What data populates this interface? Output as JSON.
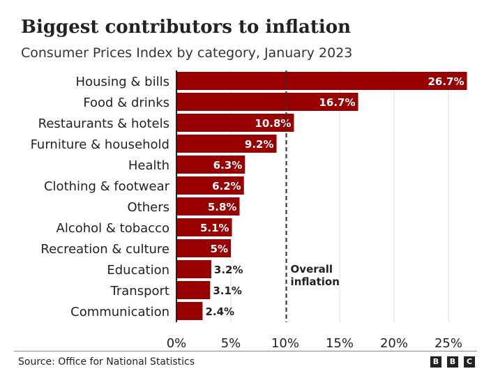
{
  "title": "Biggest contributors to inflation",
  "subtitle": "Consumer Prices Index by category, January 2023",
  "source": "Source: Office for National Statistics",
  "logo_letters": [
    "B",
    "B",
    "C"
  ],
  "colors": {
    "bar": "#990000",
    "grid": "#dddddd",
    "axis": "#222222",
    "text": "#222222"
  },
  "chart_data": {
    "type": "bar",
    "orientation": "horizontal",
    "categories": [
      "Housing & bills",
      "Food & drinks",
      "Restaurants & hotels",
      "Furniture & household",
      "Health",
      "Clothing & footwear",
      "Others",
      "Alcohol & tobacco",
      "Recreation & culture",
      "Education",
      "Transport",
      "Communication"
    ],
    "values": [
      26.7,
      16.7,
      10.8,
      9.2,
      6.3,
      6.2,
      5.8,
      5.1,
      5.0,
      3.2,
      3.1,
      2.4
    ],
    "value_labels": [
      "26.7%",
      "16.7%",
      "10.8%",
      "9.2%",
      "6.3%",
      "6.2%",
      "5.8%",
      "5.1%",
      "5%",
      "3.2%",
      "3.1%",
      "2.4%"
    ],
    "xlim": [
      0,
      28
    ],
    "x_ticks": [
      0,
      5,
      10,
      15,
      20,
      25
    ],
    "x_tick_labels": [
      "0%",
      "5%",
      "10%",
      "15%",
      "20%",
      "25%"
    ],
    "grid": true,
    "reference_line": {
      "value": 10.1,
      "label_lines": [
        "Overall",
        "inflation"
      ]
    }
  }
}
